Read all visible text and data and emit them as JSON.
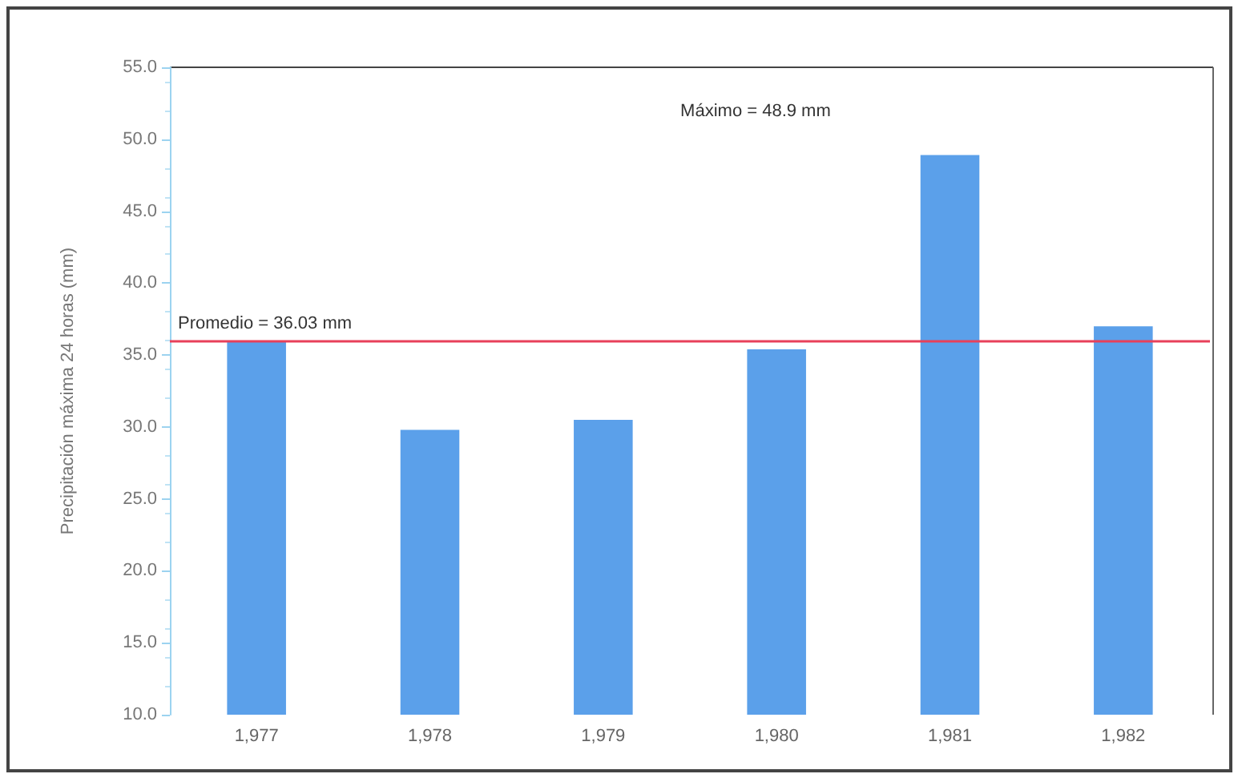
{
  "chart_data": {
    "type": "bar",
    "ylabel": "Precipitación máxima 24 horas (mm)",
    "categories": [
      "1,977",
      "1,978",
      "1,979",
      "1,980",
      "1,981",
      "1,982"
    ],
    "values": [
      35.9,
      29.8,
      30.5,
      35.4,
      48.9,
      37.0
    ],
    "color": "#5ba0ea",
    "ylim": [
      10,
      55
    ],
    "yticks": [
      {
        "value": 10,
        "label": "10.0"
      },
      {
        "value": 15,
        "label": "15.0"
      },
      {
        "value": 20,
        "label": "20.0"
      },
      {
        "value": 25,
        "label": "25.0"
      },
      {
        "value": 30,
        "label": "30.0"
      },
      {
        "value": 35,
        "label": "35.0"
      },
      {
        "value": 40,
        "label": "40.0"
      },
      {
        "value": 45,
        "label": "45.0"
      },
      {
        "value": 50,
        "label": "50.0"
      },
      {
        "value": 55,
        "label": "55.0"
      }
    ],
    "ref_lines": [
      {
        "axis": "y",
        "value": 36.03,
        "label": "Promedio = 36.03 mm",
        "color": "#e8405a"
      }
    ],
    "annotations": [
      "Máximo = 48.9 mm"
    ],
    "grid": false
  }
}
